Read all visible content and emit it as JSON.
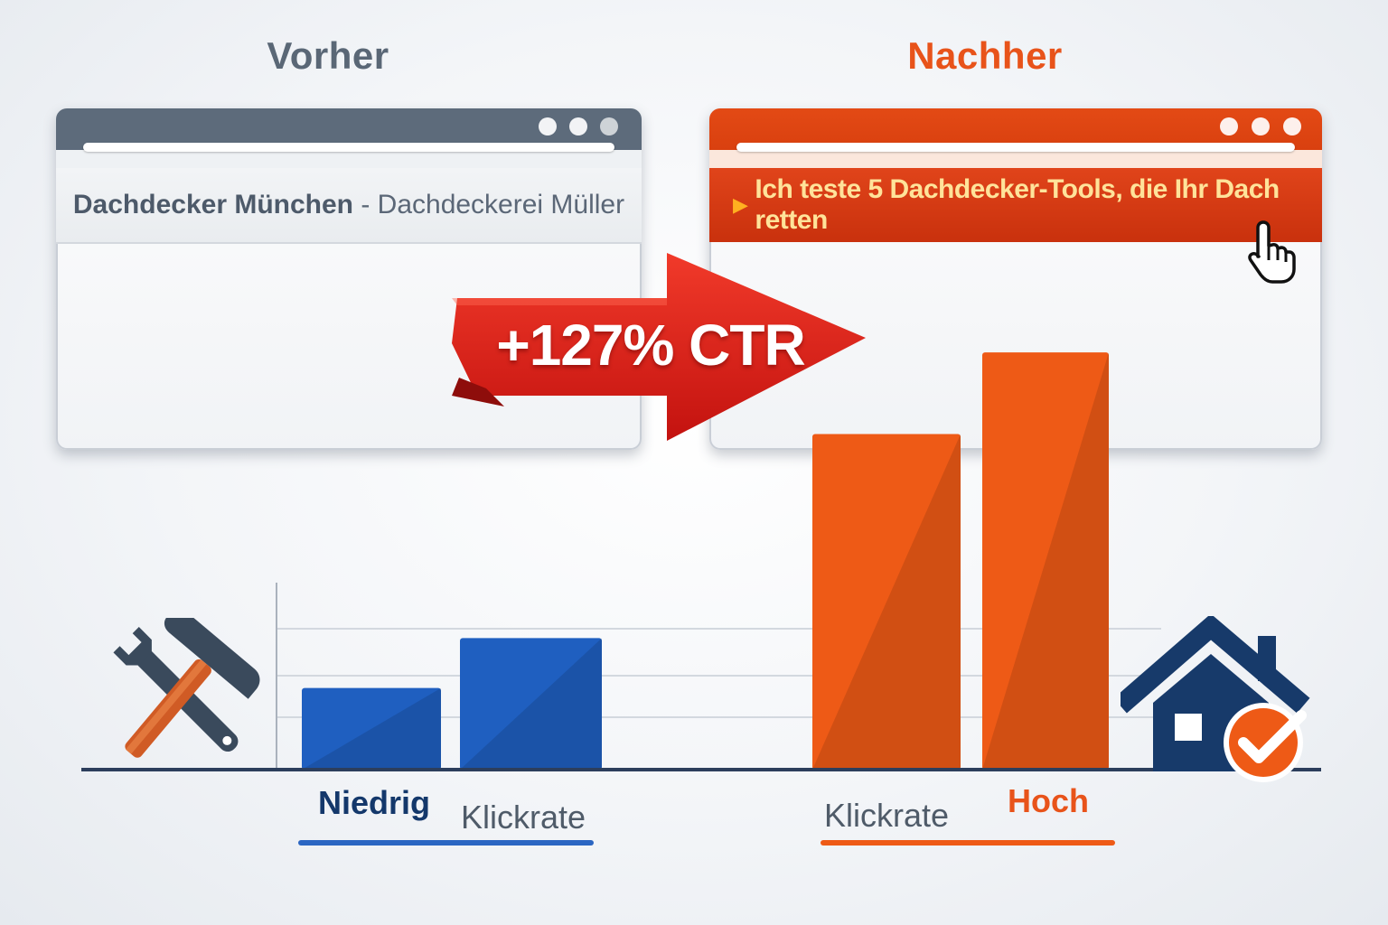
{
  "headings": {
    "before": "Vorher",
    "after": "Nachher"
  },
  "browser_before": {
    "result_strong": "Dachdecker München",
    "result_separator": " - ",
    "result_rest": "Dachdeckerei Müller"
  },
  "browser_after": {
    "result_title": "Ich teste 5 Dachdecker-Tools, die Ihr Dach retten"
  },
  "badge": {
    "label": "+127% CTR"
  },
  "labels": {
    "low": "Niedrig",
    "klickrate_left": "Klickrate",
    "klickrate_right": "Klickrate",
    "high": "Hoch"
  },
  "icons": {
    "tools": "hammer-wrench-icon",
    "house": "house-check-icon",
    "cursor": "hand-pointer-icon",
    "play": "play-triangle-icon"
  },
  "colors": {
    "before_accent": "#1f5fc0",
    "after_accent": "#ee5a16",
    "badge": "#d8221f",
    "navy": "#173a6a"
  },
  "chart_data": {
    "type": "bar",
    "title": "",
    "xlabel": "",
    "ylabel": "",
    "ylim": [
      0,
      100
    ],
    "grid": true,
    "series": [
      {
        "values": [
          18,
          29
        ],
        "color": "#1f5fc0"
      },
      {
        "values": [
          74,
          92
        ],
        "color": "#ee5a16"
      }
    ]
  }
}
